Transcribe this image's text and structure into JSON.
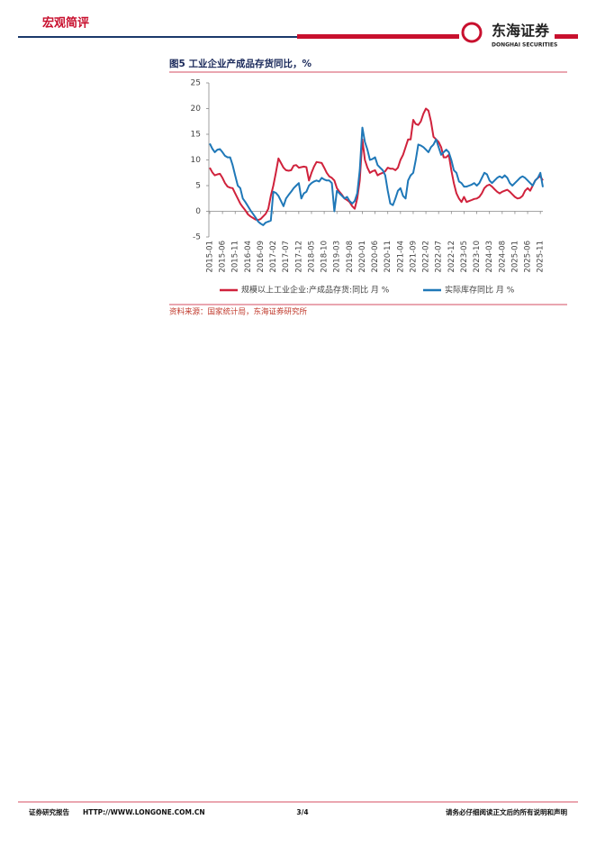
{
  "header": {
    "section": "宏观简评",
    "logo_cn": "东海证券",
    "logo_en": "DONGHAI SECURITIES"
  },
  "chart_data": {
    "type": "line",
    "title": "图5  工业企业产成品存货同比，%",
    "source": "资料来源：国家统计局，东海证券研究所",
    "categories": [
      "2015-01",
      null,
      null,
      null,
      null,
      "2015-06",
      null,
      null,
      null,
      null,
      "2015-11",
      null,
      null,
      null,
      null,
      "2016-04",
      null,
      null,
      null,
      null,
      "2016-09",
      null,
      null,
      null,
      null,
      "2017-02",
      null,
      null,
      null,
      null,
      "2017-07",
      null,
      null,
      null,
      null,
      "2017-12",
      null,
      null,
      null,
      null,
      "2018-05",
      null,
      null,
      null,
      null,
      "2018-10",
      null,
      null,
      null,
      null,
      "2019-03",
      null,
      null,
      null,
      null,
      "2019-08",
      null,
      null,
      null,
      null,
      "2020-01",
      null,
      null,
      null,
      null,
      "2020-06",
      null,
      null,
      null,
      null,
      "2020-11",
      null,
      null,
      null,
      null,
      "2021-04",
      null,
      null,
      null,
      null,
      "2021-09",
      null,
      null,
      null,
      null,
      "2022-02",
      null,
      null,
      null,
      null,
      "2022-07",
      null,
      null,
      null,
      null,
      "2022-12",
      null,
      null,
      null,
      null,
      "2023-05",
      null,
      null,
      null,
      null,
      "2023-10",
      null,
      null,
      null,
      null,
      "2024-03",
      null,
      null,
      null,
      null,
      "2024-08",
      null,
      null,
      null,
      null,
      "2025-01",
      null,
      null,
      null,
      null,
      "2025-06",
      null,
      null,
      null,
      null,
      "2025-11",
      null
    ],
    "series": [
      {
        "name": "规模以上工业企业:产成品存货:同比 月 %",
        "color": "#d0223c",
        "values": [
          8.5,
          7.6,
          7.0,
          7.2,
          7.3,
          6.5,
          5.5,
          4.8,
          4.6,
          4.5,
          3.5,
          2.5,
          1.5,
          0.8,
          0.2,
          -0.6,
          -1.0,
          -1.3,
          -1.6,
          -1.7,
          -1.5,
          -1.0,
          -0.5,
          0.5,
          3.0,
          5.0,
          7.5,
          10.3,
          9.4,
          8.5,
          8.0,
          7.9,
          8.0,
          8.9,
          9.0,
          8.5,
          8.6,
          8.7,
          8.6,
          6.0,
          7.5,
          8.7,
          9.6,
          9.5,
          9.4,
          8.5,
          7.5,
          6.8,
          6.5,
          6.0,
          4.5,
          3.8,
          3.2,
          2.5,
          2.2,
          1.8,
          1.0,
          0.5,
          2.5,
          6.0,
          14.0,
          10.0,
          8.5,
          7.5,
          7.8,
          8.0,
          7.0,
          7.3,
          7.5,
          7.8,
          8.5,
          8.3,
          8.3,
          8.0,
          8.5,
          10.0,
          11.0,
          12.5,
          14.0,
          14.0,
          17.8,
          17.0,
          16.8,
          17.5,
          19.0,
          20.0,
          19.6,
          17.5,
          14.5,
          14.0,
          13.5,
          12.5,
          10.5,
          10.5,
          11.0,
          8.0,
          5.5,
          3.5,
          2.5,
          1.8,
          2.8,
          1.8,
          2.0,
          2.2,
          2.4,
          2.5,
          2.8,
          3.5,
          4.5,
          5.0,
          5.2,
          4.8,
          4.3,
          3.8,
          3.5,
          3.8,
          4.0,
          4.2,
          3.8,
          3.3,
          2.8,
          2.5,
          2.6,
          3.0,
          4.0,
          4.5,
          4.0,
          5.0,
          6.0,
          6.5,
          6.8,
          6.0
        ]
      },
      {
        "name": "实际库存同比 月 %",
        "color": "#1f78b8",
        "values": [
          13.2,
          12.2,
          11.5,
          12.0,
          12.1,
          11.5,
          10.8,
          10.5,
          10.5,
          9.0,
          7.0,
          5.0,
          4.5,
          2.5,
          1.8,
          1.0,
          0.2,
          -0.5,
          -1.2,
          -2.0,
          -2.4,
          -2.7,
          -2.2,
          -2.0,
          -1.8,
          3.8,
          3.6,
          3.0,
          2.0,
          1.0,
          2.5,
          3.2,
          3.8,
          4.5,
          5.0,
          5.5,
          2.5,
          3.5,
          3.8,
          5.0,
          5.5,
          5.8,
          6.0,
          5.8,
          6.5,
          6.2,
          6.0,
          6.0,
          5.5,
          0.0,
          4.0,
          3.5,
          3.0,
          2.5,
          2.8,
          2.0,
          1.5,
          2.0,
          3.5,
          8.0,
          16.3,
          13.5,
          12.0,
          10.0,
          10.2,
          10.5,
          9.0,
          8.5,
          8.0,
          7.0,
          4.0,
          1.5,
          1.2,
          2.5,
          4.0,
          4.5,
          3.0,
          2.5,
          6.0,
          7.0,
          7.5,
          10.0,
          13.0,
          12.8,
          12.5,
          12.0,
          11.5,
          12.5,
          13.0,
          14.0,
          12.5,
          11.0,
          11.5,
          12.0,
          11.5,
          10.0,
          8.0,
          7.5,
          5.8,
          5.5,
          4.8,
          4.8,
          5.0,
          5.2,
          5.5,
          5.0,
          5.5,
          6.5,
          7.5,
          7.2,
          6.0,
          5.5,
          6.0,
          6.5,
          6.8,
          6.5,
          7.0,
          6.5,
          5.5,
          5.0,
          5.5,
          6.0,
          6.5,
          6.8,
          6.5,
          6.0,
          5.5,
          5.0,
          6.0,
          6.5,
          7.5,
          4.7
        ]
      }
    ],
    "ylim": [
      -5,
      25
    ],
    "yticks": [
      25,
      20,
      15,
      10,
      5,
      0,
      -5
    ],
    "grid": false
  },
  "footer": {
    "left": "证券研究报告",
    "url": "HTTP://WWW.LONGONE.COM.CN",
    "page": "3/4",
    "right": "请务必仔细阅读正文后的所有说明和声明"
  }
}
